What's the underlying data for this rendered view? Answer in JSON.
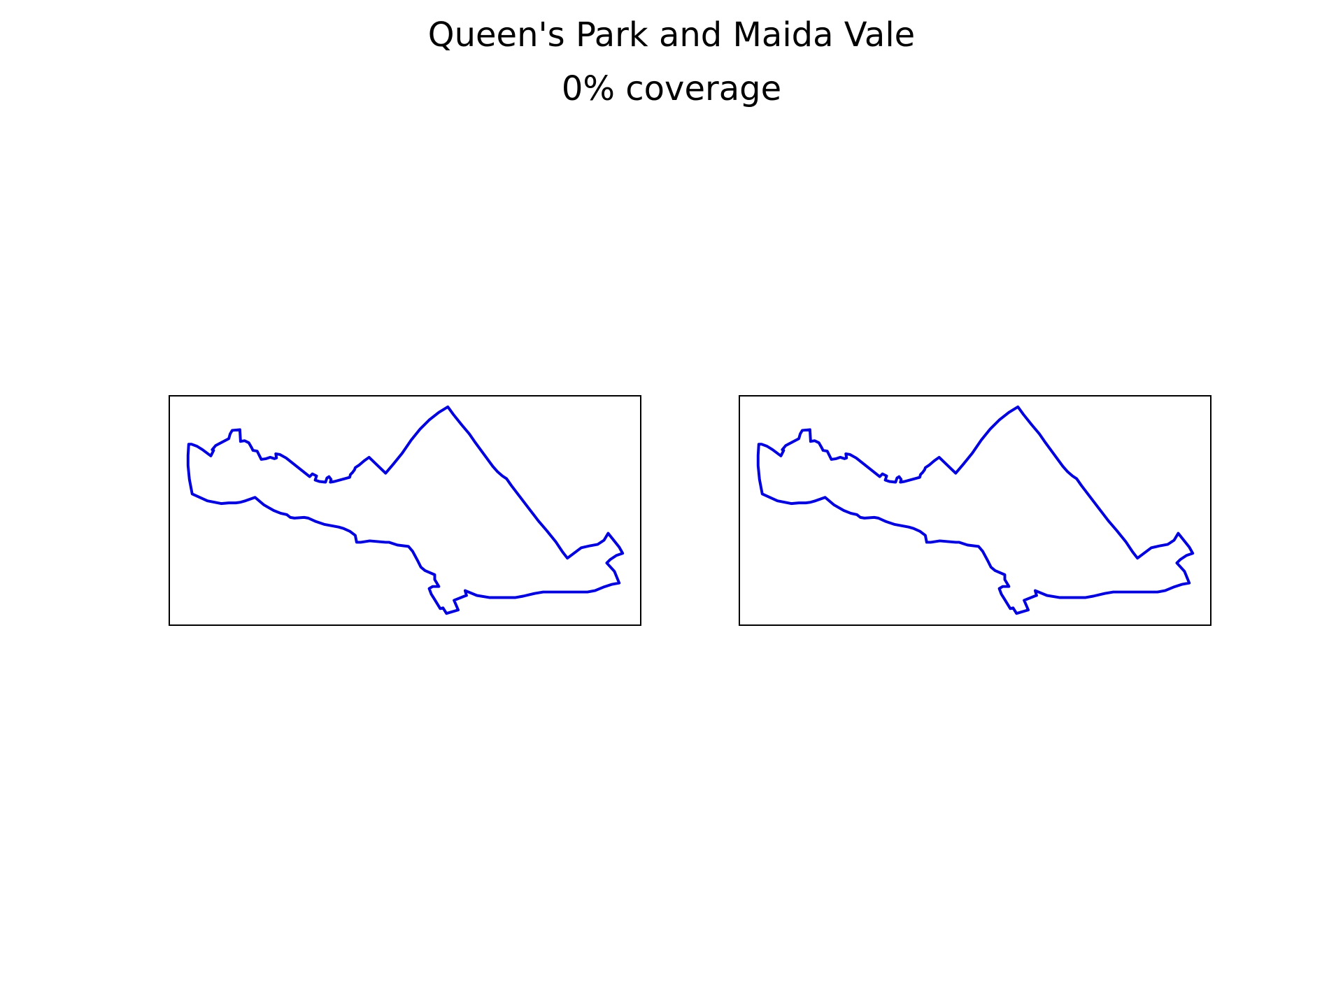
{
  "figure": {
    "title": "Queen's Park and Maida Vale",
    "subtitle": "0% coverage"
  },
  "panels": [
    {
      "id": "left",
      "region": "Queen's Park and Maida Vale",
      "outline_color": "#0000dd"
    },
    {
      "id": "right",
      "region": "Queen's Park and Maida Vale",
      "outline_color": "#0000dd"
    }
  ],
  "style": {
    "frame_color": "#000000",
    "background_color": "#ffffff"
  }
}
